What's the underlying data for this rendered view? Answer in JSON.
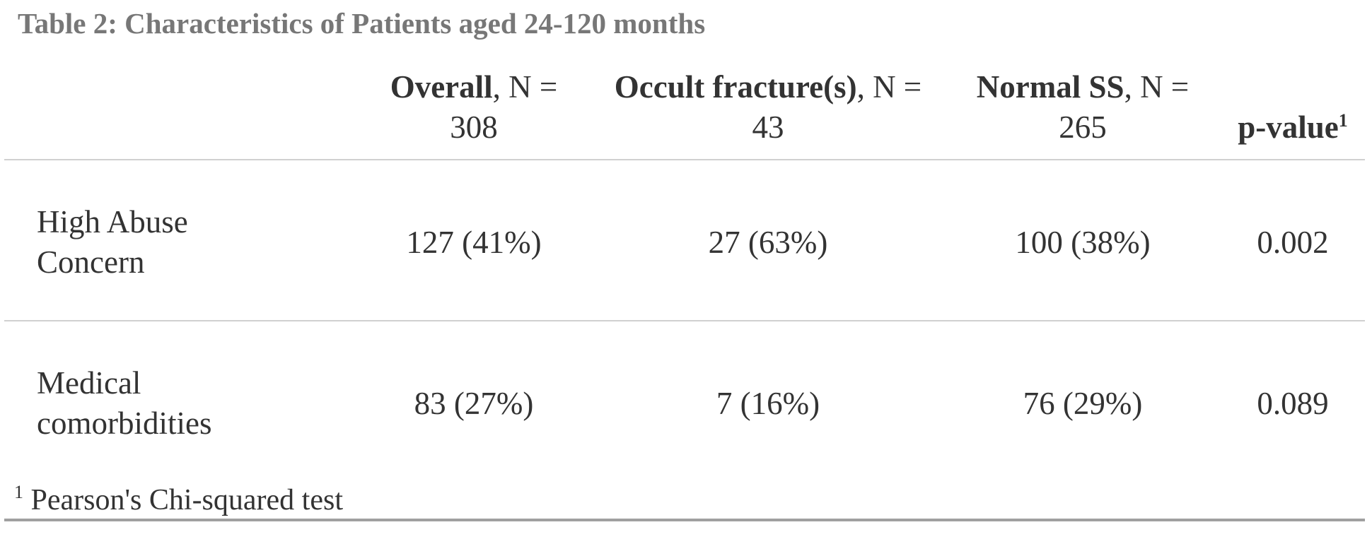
{
  "title": "Table 2: Characteristics of Patients aged 24-120 months",
  "table": {
    "columns": [
      {
        "name": "Overall",
        "suffix": ", N = 308"
      },
      {
        "name": "Occult fracture(s)",
        "suffix": ", N = 43"
      },
      {
        "name": "Normal SS",
        "suffix": ", N = 265"
      },
      {
        "name": "p-value",
        "note": "1"
      }
    ],
    "rows": [
      [
        "High Abuse Concern",
        "127 (41%)",
        "27 (63%)",
        "100 (38%)",
        "0.002"
      ],
      [
        "Medical comorbidities",
        "83 (27%)",
        "7 (16%)",
        "76 (29%)",
        "0.089"
      ]
    ]
  },
  "footnote": {
    "mark": "1",
    "text": "Pearson's Chi-squared test"
  }
}
